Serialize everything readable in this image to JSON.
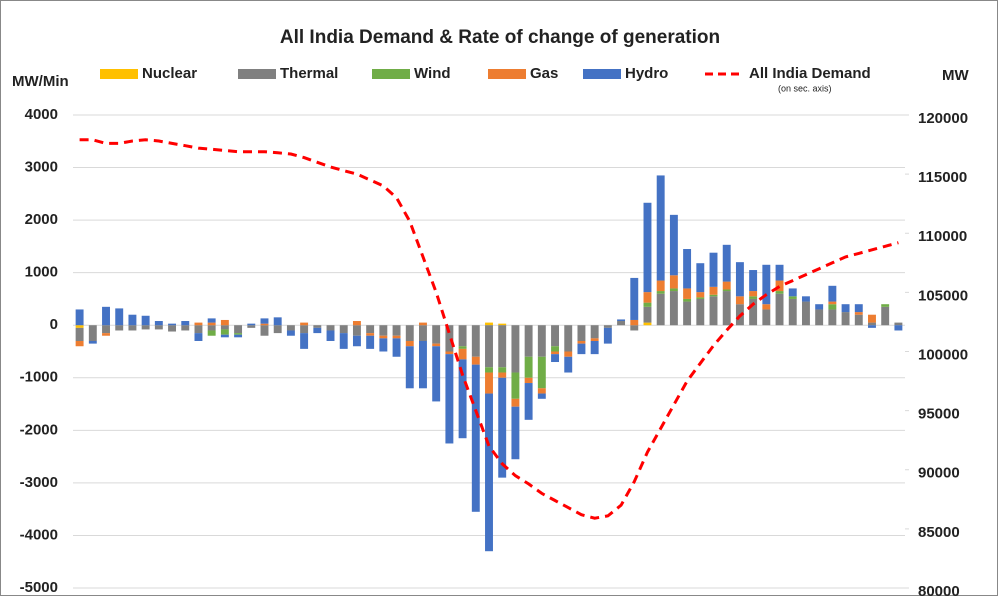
{
  "chart_data": {
    "type": "bar",
    "title": "All India Demand & Rate of change of generation",
    "y_label": "MW/Min",
    "y2_label": "MW",
    "legend_note": "(on sec. axis)",
    "categories": [
      null,
      null,
      null,
      null,
      null,
      null,
      null,
      null,
      null,
      null,
      null,
      null,
      null,
      null,
      null,
      null,
      null,
      null,
      null,
      null,
      null,
      null,
      null,
      null,
      null,
      null,
      null,
      null,
      null,
      null,
      null,
      null,
      null,
      null,
      null,
      null,
      null,
      null,
      null,
      null,
      null,
      null,
      null,
      null,
      null,
      null,
      null,
      null,
      null,
      null,
      null,
      null,
      null,
      null,
      null,
      null,
      null,
      null,
      null,
      null,
      null,
      null,
      null
    ],
    "series": [
      {
        "name": "Nuclear",
        "color": "#ffc000",
        "values": [
          -50,
          0,
          0,
          0,
          0,
          0,
          0,
          0,
          0,
          0,
          0,
          0,
          0,
          0,
          0,
          0,
          0,
          0,
          0,
          0,
          0,
          0,
          0,
          0,
          0,
          0,
          0,
          0,
          0,
          0,
          0,
          50,
          30,
          0,
          0,
          0,
          0,
          0,
          0,
          0,
          0,
          0,
          0,
          50,
          0,
          0,
          0,
          0,
          0,
          0,
          0,
          0,
          0,
          0,
          0,
          0,
          0,
          0,
          0,
          0,
          0,
          0,
          0
        ]
      },
      {
        "name": "Thermal",
        "color": "#808080",
        "values": [
          -250,
          -300,
          -150,
          -100,
          -100,
          -80,
          -80,
          -120,
          -100,
          -150,
          -100,
          -80,
          -150,
          -50,
          -200,
          -150,
          -100,
          -150,
          -50,
          -100,
          -150,
          -200,
          -150,
          -200,
          -200,
          -300,
          -300,
          -350,
          -500,
          -400,
          -600,
          -800,
          -800,
          -900,
          -600,
          -600,
          -400,
          -500,
          -300,
          -250,
          -50,
          80,
          -100,
          300,
          600,
          650,
          450,
          500,
          550,
          650,
          400,
          500,
          300,
          600,
          500,
          450,
          300,
          300,
          250,
          200,
          50,
          350,
          50
        ]
      },
      {
        "name": "Wind",
        "color": "#70ad47",
        "values": [
          0,
          0,
          0,
          0,
          0,
          0,
          0,
          0,
          0,
          0,
          -100,
          -100,
          -30,
          0,
          0,
          0,
          0,
          0,
          0,
          0,
          0,
          0,
          0,
          0,
          0,
          0,
          0,
          0,
          0,
          -50,
          0,
          -100,
          -100,
          -500,
          -400,
          -600,
          -100,
          0,
          0,
          0,
          0,
          0,
          0,
          80,
          50,
          50,
          50,
          30,
          30,
          30,
          0,
          50,
          0,
          50,
          50,
          0,
          0,
          100,
          0,
          0,
          0,
          50,
          0
        ]
      },
      {
        "name": "Gas",
        "color": "#ed7d31",
        "values": [
          -100,
          0,
          -50,
          0,
          0,
          0,
          0,
          0,
          0,
          50,
          50,
          100,
          0,
          0,
          30,
          0,
          0,
          50,
          0,
          0,
          0,
          80,
          -50,
          -50,
          -50,
          -100,
          50,
          -50,
          -50,
          -200,
          -150,
          -400,
          -100,
          -150,
          -100,
          -100,
          -50,
          -100,
          -50,
          -50,
          0,
          0,
          100,
          200,
          200,
          250,
          200,
          100,
          150,
          150,
          150,
          100,
          100,
          200,
          0,
          0,
          0,
          50,
          0,
          50,
          150,
          0,
          0
        ]
      },
      {
        "name": "Hydro",
        "color": "#4472c4",
        "values": [
          300,
          -50,
          350,
          320,
          200,
          180,
          80,
          30,
          80,
          -150,
          80,
          -50,
          -50,
          30,
          100,
          150,
          -100,
          -300,
          -100,
          -200,
          -300,
          -200,
          -250,
          -250,
          -350,
          -800,
          -900,
          -1050,
          -1700,
          -1500,
          -2800,
          -3000,
          -1900,
          -1000,
          -700,
          -100,
          -150,
          -300,
          -200,
          -250,
          -300,
          30,
          800,
          1700,
          2000,
          1150,
          750,
          550,
          650,
          700,
          650,
          400,
          750,
          300,
          150,
          100,
          100,
          300,
          150,
          150,
          -50,
          0,
          -100
        ]
      },
      {
        "name": "All India Demand",
        "color": "#ff0000",
        "type": "line",
        "axis": "y2",
        "values": [
          117900,
          117900,
          117600,
          117600,
          117800,
          117900,
          117800,
          117600,
          117400,
          117200,
          117100,
          117000,
          116900,
          116900,
          116900,
          116800,
          116700,
          116400,
          116000,
          115600,
          115300,
          115000,
          114500,
          114000,
          113000,
          111000,
          108000,
          105000,
          101500,
          98000,
          95000,
          92000,
          90500,
          89500,
          88800,
          88000,
          87400,
          86800,
          86200,
          85900,
          86100,
          87000,
          89000,
          91500,
          93500,
          95500,
          97500,
          99000,
          100500,
          101800,
          103000,
          104000,
          104800,
          105500,
          106000,
          106500,
          107000,
          107500,
          108000,
          108300,
          108600,
          108900,
          109200
        ]
      }
    ],
    "ylim": [
      -5000,
      4000
    ],
    "yticks": [
      -5000,
      -4000,
      -3000,
      -2000,
      -1000,
      0,
      1000,
      2000,
      3000,
      4000
    ],
    "y2lim": [
      80000,
      120000
    ],
    "y2ticks": [
      80000,
      85000,
      90000,
      95000,
      100000,
      105000,
      110000,
      115000,
      120000
    ],
    "grid": true,
    "legend": "top"
  }
}
